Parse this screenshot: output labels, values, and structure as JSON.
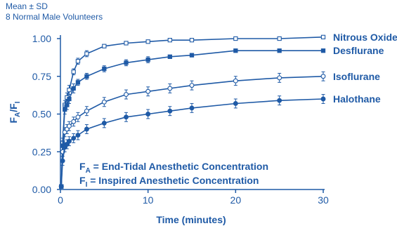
{
  "notes": {
    "line1": "Mean ± SD",
    "line2": "8 Normal Male Volunteers"
  },
  "colors": {
    "ink": "#1f5aa6"
  },
  "chart_data": {
    "type": "line",
    "title": "",
    "xlabel": "Time (minutes)",
    "ylabel_main": "F",
    "ylabel_sub1": "A",
    "ylabel_slash": "/F",
    "ylabel_sub2": "I",
    "xlim": [
      0,
      30
    ],
    "ylim": [
      0,
      1.0
    ],
    "x_ticks": [
      0,
      10,
      20,
      30
    ],
    "x_tick_labels": [
      "0",
      "10",
      "20",
      "30"
    ],
    "y_ticks": [
      0,
      0.25,
      0.5,
      0.75,
      1.0
    ],
    "y_tick_labels": [
      "0.00",
      "0.25",
      "0.50",
      "0.75",
      "1.00"
    ],
    "grid": false,
    "legend": "series names labelled at right end of each curve",
    "series": [
      {
        "name": "Nitrous Oxide",
        "marker": "open-square",
        "x": [
          0.1,
          0.25,
          0.5,
          0.75,
          1,
          1.5,
          2,
          3,
          5,
          7.5,
          10,
          12.5,
          15,
          20,
          25,
          30
        ],
        "y": [
          0.02,
          0.31,
          0.56,
          0.61,
          0.66,
          0.78,
          0.85,
          0.9,
          0.95,
          0.97,
          0.98,
          0.99,
          0.99,
          1.0,
          1.0,
          1.01
        ],
        "sd": [
          0.01,
          0.03,
          0.03,
          0.03,
          0.03,
          0.02,
          0.02,
          0.02,
          0.01,
          0.01,
          0.01,
          0.01,
          0.01,
          0.01,
          0.01,
          0.01
        ]
      },
      {
        "name": "Desflurane",
        "marker": "filled-square",
        "x": [
          0.1,
          0.25,
          0.5,
          0.75,
          1,
          1.5,
          2,
          3,
          5,
          7.5,
          10,
          12.5,
          15,
          20,
          25,
          30
        ],
        "y": [
          0.02,
          0.29,
          0.53,
          0.56,
          0.6,
          0.67,
          0.71,
          0.75,
          0.8,
          0.84,
          0.86,
          0.88,
          0.89,
          0.92,
          0.92,
          0.92
        ],
        "sd": [
          0.01,
          0.03,
          0.03,
          0.03,
          0.03,
          0.03,
          0.02,
          0.02,
          0.02,
          0.02,
          0.02,
          0.01,
          0.01,
          0.01,
          0.01,
          0.01
        ]
      },
      {
        "name": "Isoflurane",
        "marker": "open-circle",
        "x": [
          0.1,
          0.25,
          0.5,
          0.75,
          1,
          1.5,
          2,
          3,
          5,
          7.5,
          10,
          12.5,
          15,
          20,
          25,
          30
        ],
        "y": [
          0.02,
          0.25,
          0.38,
          0.4,
          0.42,
          0.45,
          0.48,
          0.52,
          0.58,
          0.63,
          0.65,
          0.67,
          0.69,
          0.72,
          0.74,
          0.75
        ],
        "sd": [
          0.01,
          0.03,
          0.03,
          0.03,
          0.03,
          0.03,
          0.03,
          0.03,
          0.03,
          0.03,
          0.03,
          0.03,
          0.03,
          0.03,
          0.03,
          0.03
        ]
      },
      {
        "name": "Halothane",
        "marker": "filled-circle",
        "x": [
          0.1,
          0.25,
          0.5,
          0.75,
          1,
          1.5,
          2,
          3,
          5,
          7.5,
          10,
          12.5,
          15,
          20,
          25,
          30
        ],
        "y": [
          0.02,
          0.19,
          0.28,
          0.3,
          0.32,
          0.34,
          0.36,
          0.4,
          0.44,
          0.48,
          0.5,
          0.52,
          0.54,
          0.57,
          0.59,
          0.6
        ],
        "sd": [
          0.01,
          0.03,
          0.03,
          0.03,
          0.03,
          0.03,
          0.03,
          0.03,
          0.03,
          0.03,
          0.03,
          0.03,
          0.03,
          0.03,
          0.03,
          0.03
        ]
      }
    ],
    "annotations": {
      "fa_main": "F",
      "fa_sub": "A",
      "fa_text": " = End-Tidal Anesthetic Concentration",
      "fi_main": "F",
      "fi_sub": "I",
      "fi_text": " = Inspired Anesthetic Concentration"
    }
  }
}
